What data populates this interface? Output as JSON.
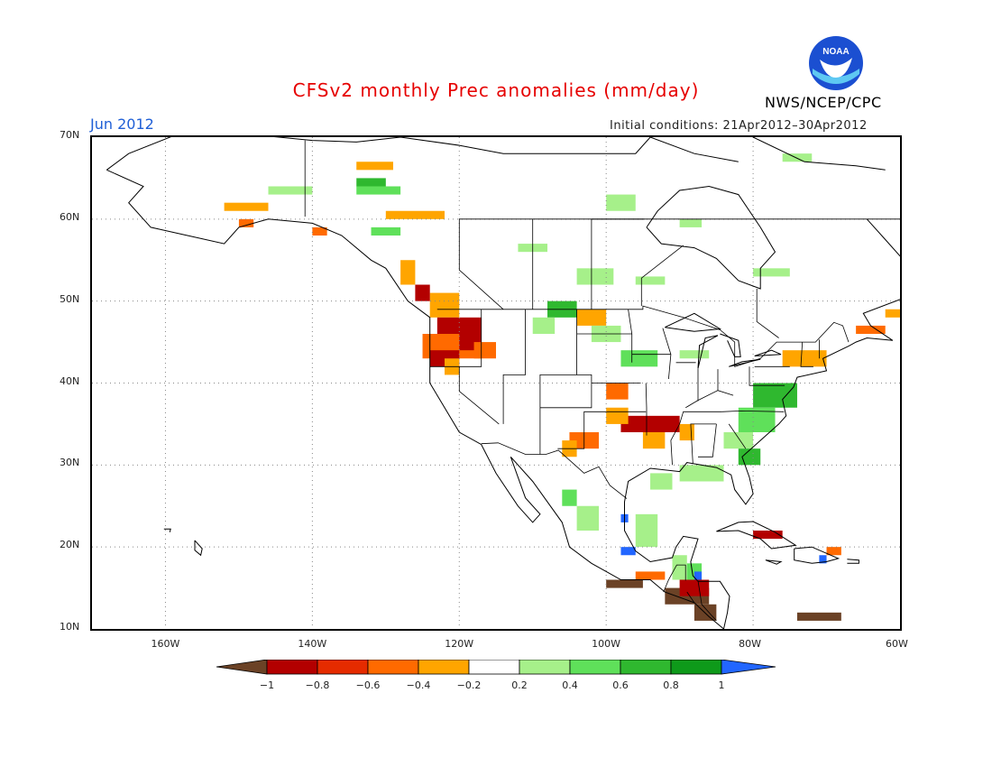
{
  "title": "CFSv2 monthly Prec anomalies (mm/day)",
  "valid_month": "Jun 2012",
  "initial_conditions": "Initial conditions: 21Apr2012–30Apr2012",
  "organization": "NWS/NCEP/CPC",
  "logo_text": "NOAA",
  "map": {
    "lat_labels": [
      "70N",
      "60N",
      "50N",
      "40N",
      "30N",
      "20N",
      "10N"
    ],
    "lon_labels": [
      "160W",
      "140W",
      "120W",
      "100W",
      "80W",
      "60W"
    ],
    "region": "North America"
  },
  "colorbar": {
    "tick_labels": [
      "−1",
      "−0.8",
      "−0.6",
      "−0.4",
      "−0.2",
      "0.2",
      "0.4",
      "0.6",
      "0.8",
      "1"
    ],
    "colors": [
      "#6b4226",
      "#b30000",
      "#e52b00",
      "#ff6a00",
      "#ffa500",
      "#ffffff",
      "#a6f08a",
      "#5fe05a",
      "#2fb82f",
      "#0e9a1a",
      "#2266ff"
    ]
  },
  "colors": {
    "title": "#e60000",
    "month": "#1f5fd6",
    "dry_strong": "#b30000",
    "dry_moderate": "#ff6a00",
    "dry_light": "#ffa500",
    "wet_light": "#a6f08a",
    "wet_moderate": "#5fe05a",
    "wet_strong": "#2fb82f",
    "extreme_dry": "#6b4226",
    "extreme_wet": "#2266ff"
  }
}
